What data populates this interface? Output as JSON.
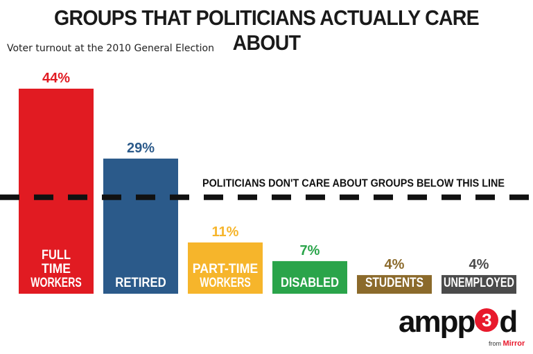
{
  "title": "GROUPS THAT POLITICIANS ACTUALLY CARE ABOUT",
  "subtitle": "Voter turnout at the 2010 General Election",
  "chart_data": {
    "type": "bar",
    "categories": [
      "FULL TIME WORKERS",
      "RETIRED",
      "PART-TIME WORKERS",
      "DISABLED",
      "STUDENTS",
      "UNEMPLOYED"
    ],
    "category_lines": [
      [
        "FULL",
        "TIME",
        "WORKERS"
      ],
      [
        "RETIRED"
      ],
      [
        "PART-TIME",
        "WORKERS"
      ],
      [
        "DISABLED"
      ],
      [
        "STUDENTS"
      ],
      [
        "UNEMPLOYED"
      ]
    ],
    "values": [
      44,
      29,
      11,
      7,
      4,
      4
    ],
    "data_labels": [
      "44%",
      "29%",
      "11%",
      "7%",
      "4%",
      "4%"
    ],
    "colors": [
      "#e11b22",
      "#2b5a8a",
      "#f6b52b",
      "#2aa44a",
      "#8b6a2b",
      "#4a4a4a"
    ],
    "threshold_label": "POLITICIANS DON'T CARE ABOUT GROUPS BELOW THIS LINE",
    "threshold_value": 21,
    "ylim": [
      0,
      44
    ],
    "grid": false
  },
  "logo": {
    "text_a": "ampp",
    "text_num": "3",
    "text_b": "d",
    "from": "from",
    "brand": "Mirror"
  }
}
